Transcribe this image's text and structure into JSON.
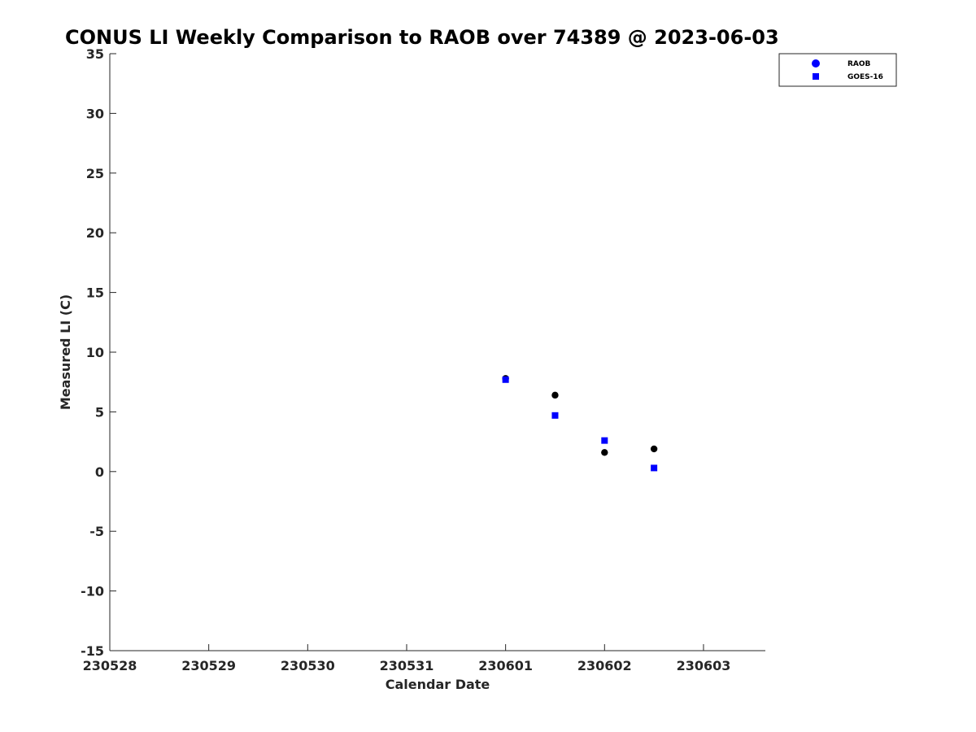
{
  "chart_data": {
    "type": "scatter",
    "title": "CONUS LI Weekly Comparison to RAOB over 74389 @ 2023-06-03",
    "xlabel": "Calendar Date",
    "ylabel": "Measured LI (C)",
    "x_ticks": [
      "230528",
      "230529",
      "230530",
      "230531",
      "230601",
      "230602",
      "230603"
    ],
    "y_ticks": [
      35,
      30,
      25,
      20,
      15,
      10,
      5,
      0,
      -5,
      -10,
      -15
    ],
    "xlim": [
      "2023-05-28",
      "2023-06-03 15:00"
    ],
    "ylim": [
      -15,
      35
    ],
    "grid": false,
    "legend_position": "top-right",
    "series": [
      {
        "name": "RAOB",
        "marker": "circle",
        "color": "#000000",
        "legend_color": "#0000ff",
        "points": [
          {
            "x": "2023-06-01 00:00",
            "y": 7.8
          },
          {
            "x": "2023-06-01 12:00",
            "y": 6.4
          },
          {
            "x": "2023-06-02 00:00",
            "y": 1.6
          },
          {
            "x": "2023-06-02 12:00",
            "y": 1.9
          }
        ]
      },
      {
        "name": "GOES-16",
        "marker": "square",
        "color": "#0000ff",
        "legend_color": "#0000ff",
        "points": [
          {
            "x": "2023-06-01 00:00",
            "y": 7.7
          },
          {
            "x": "2023-06-01 12:00",
            "y": 4.7
          },
          {
            "x": "2023-06-02 00:00",
            "y": 2.6
          },
          {
            "x": "2023-06-02 12:00",
            "y": 0.3
          }
        ]
      }
    ]
  }
}
